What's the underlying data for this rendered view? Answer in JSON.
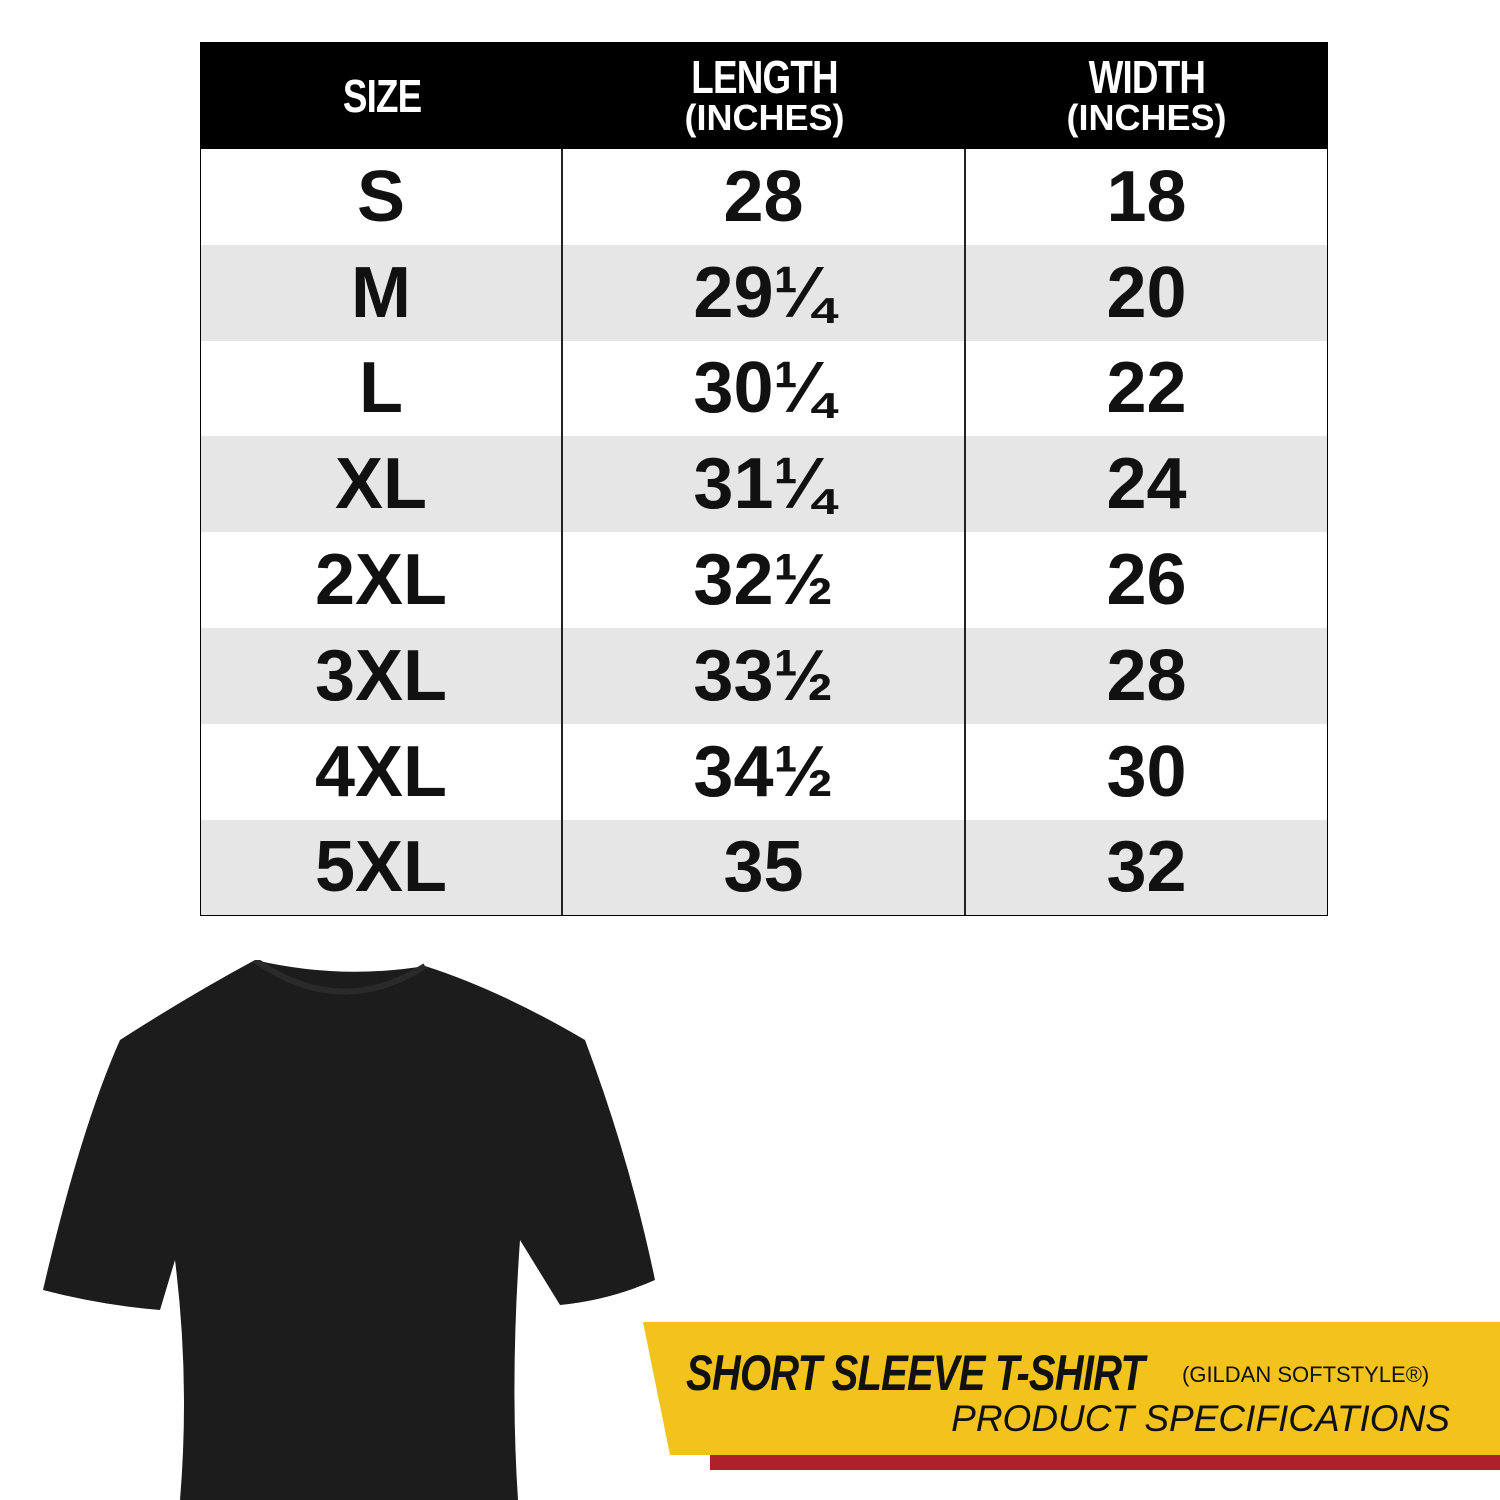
{
  "table": {
    "headers": [
      {
        "title": "SIZE",
        "unit": ""
      },
      {
        "title": "LENGTH",
        "unit": "(INCHES)"
      },
      {
        "title": "WIDTH",
        "unit": "(INCHES)"
      }
    ],
    "rows": [
      [
        "S",
        "28",
        "18"
      ],
      [
        "M",
        "29¼",
        "20"
      ],
      [
        "L",
        "30¼",
        "22"
      ],
      [
        "XL",
        "31¼",
        "24"
      ],
      [
        "2XL",
        "32½",
        "26"
      ],
      [
        "3XL",
        "33½",
        "28"
      ],
      [
        "4XL",
        "34½",
        "30"
      ],
      [
        "5XL",
        "35",
        "32"
      ]
    ]
  },
  "banner": {
    "title": "SHORT SLEEVE T-SHIRT",
    "brand": "(GILDAN SOFTSTYLE®)",
    "subtitle": "PRODUCT SPECIFICATIONS",
    "colors": {
      "yellow": "#f2c31c",
      "red": "#b0202a"
    }
  },
  "product_image": {
    "color": "#1c1c1c"
  }
}
